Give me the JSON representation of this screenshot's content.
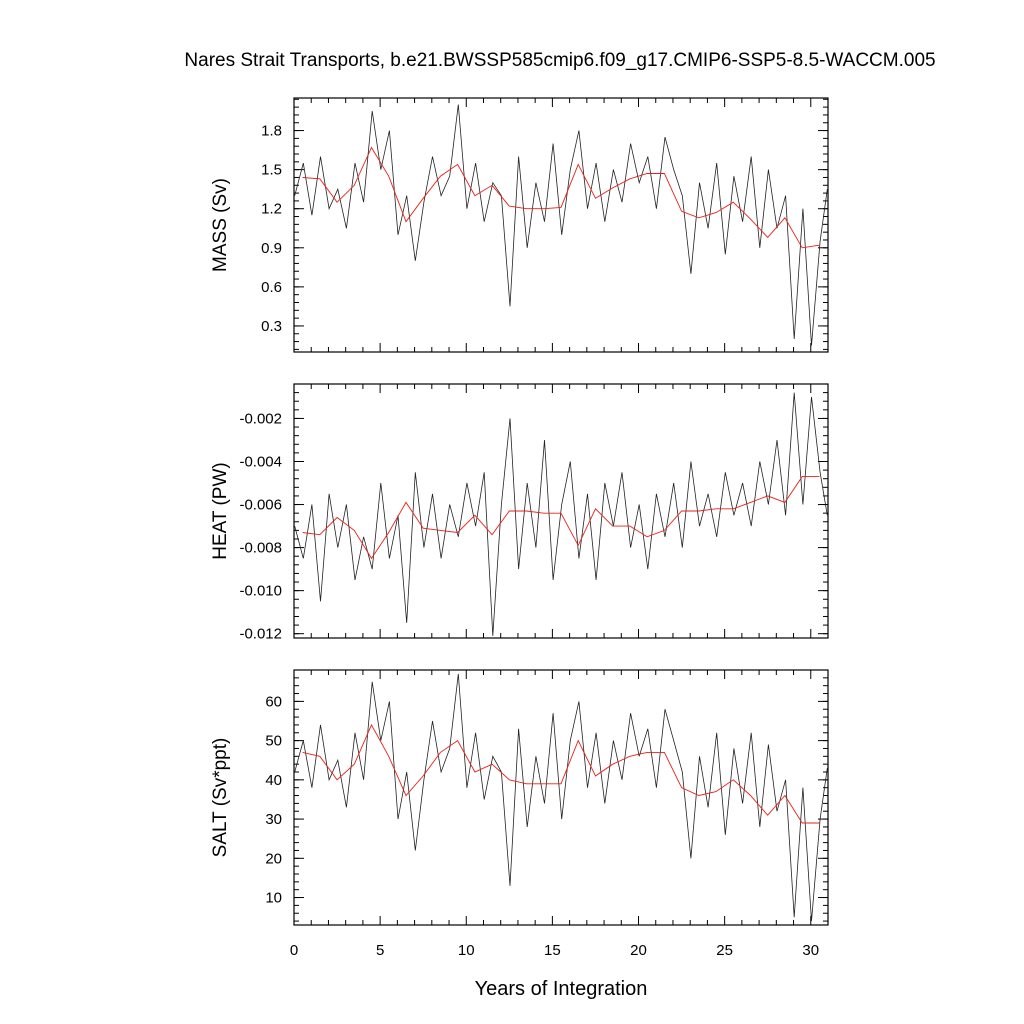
{
  "title": "Nares Strait Transports, b.e21.BWSSP585cmip6.f09_g17.CMIP6-SSP5-8.5-WACCM.005",
  "colors": {
    "raw_series": "#222222",
    "running_mean": "#e8201a",
    "axes": "#000000",
    "background": "#ffffff"
  },
  "chart_data": [
    {
      "type": "line",
      "panel": "top",
      "ylabel": "MASS (Sv)",
      "xlim": [
        0,
        31
      ],
      "ylim": [
        0.1,
        2.05
      ],
      "yticks": [
        0.3,
        0.6,
        0.9,
        1.2,
        1.5,
        1.8
      ],
      "ytick_labels": [
        "0.3",
        "0.6",
        "0.9",
        "1.2",
        "1.5",
        "1.8"
      ],
      "series": [
        {
          "style": "monthly (thin black)",
          "x": [
            0.04,
            0.54,
            1.04,
            1.54,
            2.04,
            2.54,
            3.04,
            3.54,
            4.04,
            4.54,
            5.04,
            5.54,
            6.04,
            6.54,
            7.04,
            7.54,
            8.04,
            8.54,
            9.04,
            9.54,
            10.04,
            10.54,
            11.04,
            11.54,
            12.04,
            12.54,
            13.04,
            13.54,
            14.04,
            14.54,
            15.04,
            15.54,
            16.04,
            16.54,
            17.04,
            17.54,
            18.04,
            18.54,
            19.04,
            19.54,
            20.04,
            20.54,
            21.04,
            21.54,
            22.04,
            22.54,
            23.04,
            23.54,
            24.04,
            24.54,
            25.04,
            25.54,
            26.04,
            26.54,
            27.04,
            27.54,
            28.04,
            28.54,
            29.04,
            29.54,
            30.04,
            30.54,
            30.96
          ],
          "y": [
            1.3,
            1.55,
            1.15,
            1.6,
            1.2,
            1.35,
            1.05,
            1.55,
            1.25,
            1.95,
            1.5,
            1.8,
            1.0,
            1.3,
            0.8,
            1.25,
            1.6,
            1.3,
            1.45,
            2.0,
            1.2,
            1.55,
            1.1,
            1.4,
            1.3,
            0.45,
            1.6,
            0.9,
            1.4,
            1.1,
            1.7,
            1.0,
            1.5,
            1.8,
            1.2,
            1.55,
            1.1,
            1.5,
            1.25,
            1.7,
            1.4,
            1.6,
            1.2,
            1.75,
            1.5,
            1.3,
            0.7,
            1.4,
            1.05,
            1.55,
            0.85,
            1.45,
            1.1,
            1.6,
            0.9,
            1.5,
            1.05,
            1.3,
            0.2,
            1.2,
            0.15,
            0.95,
            1.35
          ]
        },
        {
          "style": "annual running mean (thin red)",
          "x": [
            0.5,
            1.5,
            2.5,
            3.5,
            4.5,
            5.5,
            6.5,
            7.5,
            8.5,
            9.5,
            10.5,
            11.5,
            12.5,
            13.5,
            14.5,
            15.5,
            16.5,
            17.5,
            18.5,
            19.5,
            20.5,
            21.5,
            22.5,
            23.5,
            24.5,
            25.5,
            26.5,
            27.5,
            28.5,
            29.5,
            30.5
          ],
          "y": [
            1.44,
            1.43,
            1.25,
            1.38,
            1.67,
            1.45,
            1.1,
            1.28,
            1.45,
            1.54,
            1.3,
            1.38,
            1.22,
            1.2,
            1.2,
            1.21,
            1.54,
            1.28,
            1.36,
            1.43,
            1.47,
            1.47,
            1.18,
            1.13,
            1.17,
            1.25,
            1.12,
            0.98,
            1.13,
            0.9,
            0.92
          ]
        }
      ]
    },
    {
      "type": "line",
      "panel": "middle",
      "ylabel": "HEAT (PW)",
      "xlim": [
        0,
        31
      ],
      "ylim": [
        -0.0122,
        -0.0004
      ],
      "yticks": [
        -0.012,
        -0.01,
        -0.008,
        -0.006,
        -0.004,
        -0.002
      ],
      "ytick_labels": [
        "-0.012",
        "-0.010",
        "-0.008",
        "-0.006",
        "-0.004",
        "-0.002"
      ],
      "series": [
        {
          "style": "monthly (thin black)",
          "x": [
            0.04,
            0.54,
            1.04,
            1.54,
            2.04,
            2.54,
            3.04,
            3.54,
            4.04,
            4.54,
            5.04,
            5.54,
            6.04,
            6.54,
            7.04,
            7.54,
            8.04,
            8.54,
            9.04,
            9.54,
            10.04,
            10.54,
            11.04,
            11.54,
            12.04,
            12.54,
            13.04,
            13.54,
            14.04,
            14.54,
            15.04,
            15.54,
            16.04,
            16.54,
            17.04,
            17.54,
            18.04,
            18.54,
            19.04,
            19.54,
            20.04,
            20.54,
            21.04,
            21.54,
            22.04,
            22.54,
            23.04,
            23.54,
            24.04,
            24.54,
            25.04,
            25.54,
            26.04,
            26.54,
            27.04,
            27.54,
            28.04,
            28.54,
            29.04,
            29.54,
            30.04,
            30.54,
            30.96
          ],
          "y": [
            -0.007,
            -0.0085,
            -0.006,
            -0.0105,
            -0.0055,
            -0.008,
            -0.006,
            -0.0095,
            -0.0075,
            -0.009,
            -0.005,
            -0.0085,
            -0.0065,
            -0.0115,
            -0.0045,
            -0.008,
            -0.0055,
            -0.0085,
            -0.006,
            -0.0075,
            -0.005,
            -0.007,
            -0.0045,
            -0.0121,
            -0.006,
            -0.002,
            -0.009,
            -0.005,
            -0.008,
            -0.003,
            -0.0095,
            -0.006,
            -0.004,
            -0.0085,
            -0.0055,
            -0.0095,
            -0.005,
            -0.007,
            -0.0045,
            -0.008,
            -0.006,
            -0.009,
            -0.0055,
            -0.0075,
            -0.005,
            -0.008,
            -0.004,
            -0.007,
            -0.0055,
            -0.0075,
            -0.0045,
            -0.0065,
            -0.005,
            -0.007,
            -0.004,
            -0.006,
            -0.003,
            -0.0065,
            -0.0008,
            -0.006,
            -0.001,
            -0.0045,
            -0.0065
          ]
        },
        {
          "style": "annual running mean (thin red)",
          "x": [
            0.5,
            1.5,
            2.5,
            3.5,
            4.5,
            5.5,
            6.5,
            7.5,
            8.5,
            9.5,
            10.5,
            11.5,
            12.5,
            13.5,
            14.5,
            15.5,
            16.5,
            17.5,
            18.5,
            19.5,
            20.5,
            21.5,
            22.5,
            23.5,
            24.5,
            25.5,
            26.5,
            27.5,
            28.5,
            29.5,
            30.5
          ],
          "y": [
            -0.0073,
            -0.0074,
            -0.0066,
            -0.0072,
            -0.0085,
            -0.0073,
            -0.0059,
            -0.0071,
            -0.0072,
            -0.0073,
            -0.0065,
            -0.0074,
            -0.0063,
            -0.0063,
            -0.0064,
            -0.0064,
            -0.0079,
            -0.0062,
            -0.007,
            -0.007,
            -0.0075,
            -0.0072,
            -0.0063,
            -0.0063,
            -0.0062,
            -0.0062,
            -0.0059,
            -0.0056,
            -0.0059,
            -0.0047,
            -0.0047
          ]
        }
      ]
    },
    {
      "type": "line",
      "panel": "bottom",
      "ylabel": "SALT (Sv*ppt)",
      "xlabel": "Years of Integration",
      "xlim": [
        0,
        31
      ],
      "ylim": [
        3,
        68
      ],
      "yticks": [
        10,
        20,
        30,
        40,
        50,
        60
      ],
      "ytick_labels": [
        "10",
        "20",
        "30",
        "40",
        "50",
        "60"
      ],
      "xticks": [
        0,
        5,
        10,
        15,
        20,
        25,
        30
      ],
      "xtick_labels": [
        "0",
        "5",
        "10",
        "15",
        "20",
        "25",
        "30"
      ],
      "series": [
        {
          "style": "monthly (thin black)",
          "x": [
            0.04,
            0.54,
            1.04,
            1.54,
            2.04,
            2.54,
            3.04,
            3.54,
            4.04,
            4.54,
            5.04,
            5.54,
            6.04,
            6.54,
            7.04,
            7.54,
            8.04,
            8.54,
            9.04,
            9.54,
            10.04,
            10.54,
            11.04,
            11.54,
            12.04,
            12.54,
            13.04,
            13.54,
            14.04,
            14.54,
            15.04,
            15.54,
            16.04,
            16.54,
            17.04,
            17.54,
            18.04,
            18.54,
            19.04,
            19.54,
            20.04,
            20.54,
            21.04,
            21.54,
            22.04,
            22.54,
            23.04,
            23.54,
            24.04,
            24.54,
            25.04,
            25.54,
            26.04,
            26.54,
            27.04,
            27.54,
            28.04,
            28.54,
            29.04,
            29.54,
            30.04,
            30.54,
            30.96
          ],
          "y": [
            42,
            50,
            38,
            54,
            40,
            45,
            33,
            52,
            40,
            65,
            50,
            60,
            30,
            42,
            22,
            40,
            55,
            42,
            48,
            67,
            38,
            52,
            35,
            46,
            42,
            13,
            53,
            28,
            46,
            34,
            57,
            30,
            50,
            60,
            38,
            52,
            34,
            50,
            40,
            57,
            46,
            53,
            38,
            58,
            50,
            42,
            20,
            46,
            33,
            52,
            26,
            48,
            34,
            52,
            28,
            49,
            32,
            40,
            5,
            38,
            4,
            30,
            43
          ]
        },
        {
          "style": "annual running mean (thin red)",
          "x": [
            0.5,
            1.5,
            2.5,
            3.5,
            4.5,
            5.5,
            6.5,
            7.5,
            8.5,
            9.5,
            10.5,
            11.5,
            12.5,
            13.5,
            14.5,
            15.5,
            16.5,
            17.5,
            18.5,
            19.5,
            20.5,
            21.5,
            22.5,
            23.5,
            24.5,
            25.5,
            26.5,
            27.5,
            28.5,
            29.5,
            30.5
          ],
          "y": [
            47,
            46,
            40,
            44,
            54,
            46,
            36,
            41,
            47,
            50,
            42,
            44,
            40,
            39,
            39,
            39,
            50,
            41,
            44,
            46,
            47,
            47,
            38,
            36,
            37,
            40,
            36,
            31,
            36,
            29,
            29
          ]
        }
      ]
    }
  ]
}
